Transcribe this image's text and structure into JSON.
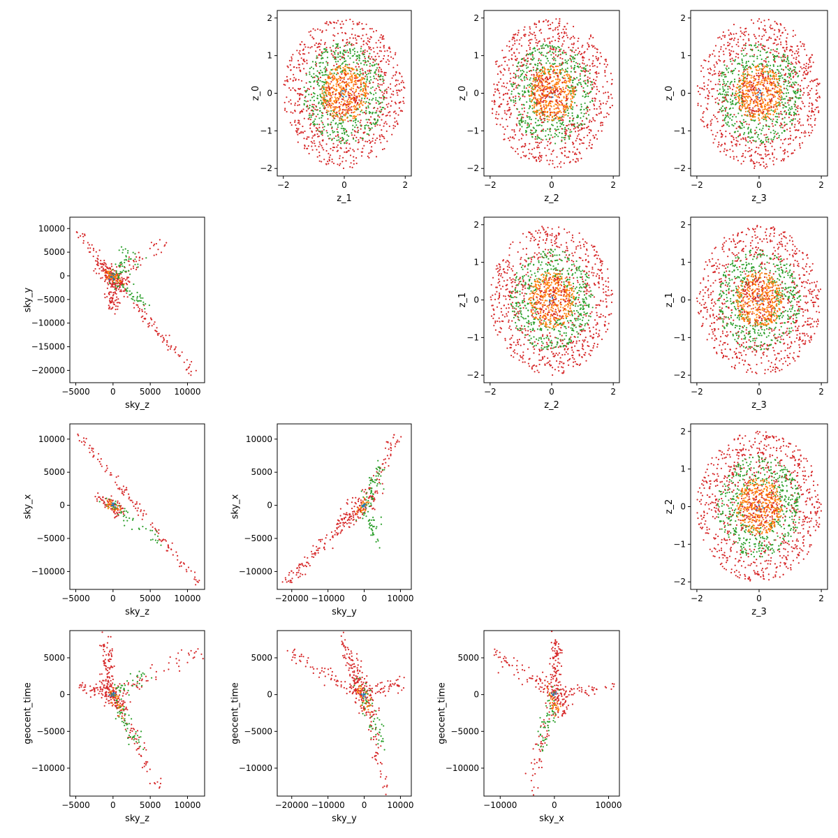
{
  "figure": {
    "type": "pairwise scatter matrix",
    "series_colors": [
      "#1f77b4",
      "#ff7f0e",
      "#2ca02c",
      "#d62728"
    ]
  },
  "chart_data": [
    {
      "id": "z1-z0",
      "type": "scatter",
      "pattern": "rings",
      "xlabel": "z_1",
      "ylabel": "z_0",
      "xlim": [
        -2.2,
        2.2
      ],
      "ylim": [
        -2.2,
        2.2
      ],
      "xticks": [
        -2,
        0,
        2
      ],
      "yticks": [
        -2,
        -1,
        0,
        1,
        2
      ],
      "xtick_labels": [
        "−2",
        "0",
        "2"
      ],
      "ytick_labels": [
        "−2",
        "−1",
        "0",
        "1",
        "2"
      ],
      "seed": 11
    },
    {
      "id": "z2-z0",
      "type": "scatter",
      "pattern": "rings",
      "xlabel": "z_2",
      "ylabel": "z_0",
      "xlim": [
        -2.2,
        2.2
      ],
      "ylim": [
        -2.2,
        2.2
      ],
      "xticks": [
        -2,
        0,
        2
      ],
      "yticks": [
        -2,
        -1,
        0,
        1,
        2
      ],
      "xtick_labels": [
        "−2",
        "0",
        "2"
      ],
      "ytick_labels": [
        "−2",
        "−1",
        "0",
        "1",
        "2"
      ],
      "seed": 12
    },
    {
      "id": "z3-z0",
      "type": "scatter",
      "pattern": "rings",
      "xlabel": "z_3",
      "ylabel": "z_0",
      "xlim": [
        -2.2,
        2.2
      ],
      "ylim": [
        -2.2,
        2.2
      ],
      "xticks": [
        -2,
        0,
        2
      ],
      "yticks": [
        -2,
        -1,
        0,
        1,
        2
      ],
      "xtick_labels": [
        "−2",
        "0",
        "2"
      ],
      "ytick_labels": [
        "−2",
        "−1",
        "0",
        "1",
        "2"
      ],
      "seed": 13
    },
    {
      "id": "skyz-skyy",
      "type": "scatter",
      "pattern": "arms",
      "xlabel": "sky_z",
      "ylabel": "sky_y",
      "xlim": [
        -5800,
        12300
      ],
      "ylim": [
        -22600,
        12400
      ],
      "xticks": [
        -5000,
        0,
        5000,
        10000
      ],
      "yticks": [
        -20000,
        -15000,
        -10000,
        -5000,
        0,
        5000,
        10000
      ],
      "xtick_labels": [
        "−5000",
        "0",
        "5000",
        "10000"
      ],
      "ytick_labels": [
        "−20000",
        "−15000",
        "−10000",
        "−5000",
        "0",
        "5000",
        "10000"
      ],
      "seed": 21,
      "arms": [
        {
          "series": 3,
          "n": 90,
          "from": [
            -300,
            300
          ],
          "to": [
            11500,
            -22000
          ],
          "spread": [
            350,
            600
          ]
        },
        {
          "series": 3,
          "n": 45,
          "from": [
            -400,
            300
          ],
          "to": [
            -4700,
            9800
          ],
          "spread": [
            300,
            600
          ]
        },
        {
          "series": 3,
          "n": 40,
          "from": [
            500,
            400
          ],
          "to": [
            6800,
            7200
          ],
          "spread": [
            700,
            900
          ]
        },
        {
          "series": 3,
          "n": 110,
          "from": [
            0,
            1200
          ],
          "to": [
            0,
            -7000
          ],
          "spread": [
            450,
            900
          ]
        },
        {
          "series": 3,
          "n": 120,
          "from": [
            -1500,
            1500
          ],
          "to": [
            1500,
            -1800
          ],
          "spread": [
            700,
            800
          ]
        },
        {
          "series": 2,
          "n": 60,
          "from": [
            0,
            -1000
          ],
          "to": [
            2500,
            5000
          ],
          "spread": [
            700,
            900
          ]
        },
        {
          "series": 2,
          "n": 40,
          "from": [
            600,
            -1500
          ],
          "to": [
            4500,
            -6000
          ],
          "spread": [
            400,
            500
          ]
        },
        {
          "series": 1,
          "n": 40,
          "from": [
            -800,
            800
          ],
          "to": [
            900,
            -1200
          ],
          "spread": [
            350,
            400
          ]
        }
      ]
    },
    {
      "id": "z2-z1",
      "type": "scatter",
      "pattern": "rings",
      "xlabel": "z_2",
      "ylabel": "z_1",
      "xlim": [
        -2.2,
        2.2
      ],
      "ylim": [
        -2.2,
        2.2
      ],
      "xticks": [
        -2,
        0,
        2
      ],
      "yticks": [
        -2,
        -1,
        0,
        1,
        2
      ],
      "xtick_labels": [
        "−2",
        "0",
        "2"
      ],
      "ytick_labels": [
        "−2",
        "−1",
        "0",
        "1",
        "2"
      ],
      "seed": 22
    },
    {
      "id": "z3-z1",
      "type": "scatter",
      "pattern": "rings",
      "xlabel": "z_3",
      "ylabel": "z_1",
      "xlim": [
        -2.2,
        2.2
      ],
      "ylim": [
        -2.2,
        2.2
      ],
      "xticks": [
        -2,
        0,
        2
      ],
      "yticks": [
        -2,
        -1,
        0,
        1,
        2
      ],
      "xtick_labels": [
        "−2",
        "0",
        "2"
      ],
      "ytick_labels": [
        "−2",
        "−1",
        "0",
        "1",
        "2"
      ],
      "seed": 23
    },
    {
      "id": "skyz-skyx",
      "type": "scatter",
      "pattern": "arms",
      "xlabel": "sky_z",
      "ylabel": "sky_x",
      "xlim": [
        -5800,
        12300
      ],
      "ylim": [
        -12700,
        12300
      ],
      "xticks": [
        -5000,
        0,
        5000,
        10000
      ],
      "yticks": [
        -10000,
        -5000,
        0,
        5000,
        10000
      ],
      "xtick_labels": [
        "−5000",
        "0",
        "5000",
        "10000"
      ],
      "ytick_labels": [
        "−10000",
        "−5000",
        "0",
        "5000",
        "10000"
      ],
      "seed": 31,
      "arms": [
        {
          "series": 3,
          "n": 120,
          "from": [
            -4700,
            10800
          ],
          "to": [
            11500,
            -11800
          ],
          "spread": [
            250,
            350
          ]
        },
        {
          "series": 3,
          "n": 80,
          "from": [
            -1800,
            1500
          ],
          "to": [
            1200,
            -1200
          ],
          "spread": [
            500,
            500
          ]
        },
        {
          "series": 2,
          "n": 50,
          "from": [
            -1000,
            700
          ],
          "to": [
            6000,
            -5500
          ],
          "spread": [
            500,
            500
          ]
        },
        {
          "series": 1,
          "n": 25,
          "from": [
            -800,
            600
          ],
          "to": [
            800,
            -800
          ],
          "spread": [
            300,
            300
          ]
        }
      ]
    },
    {
      "id": "skyy-skyx",
      "type": "scatter",
      "pattern": "arms",
      "xlabel": "sky_y",
      "ylabel": "sky_x",
      "xlim": [
        -24000,
        13000
      ],
      "ylim": [
        -12700,
        12300
      ],
      "xticks": [
        -20000,
        -10000,
        0,
        10000
      ],
      "yticks": [
        -10000,
        -5000,
        0,
        5000,
        10000
      ],
      "xtick_labels": [
        "−20000",
        "−10000",
        "0",
        "10000"
      ],
      "ytick_labels": [
        "−10000",
        "−5000",
        "0",
        "5000",
        "10000"
      ],
      "seed": 32,
      "arms": [
        {
          "series": 3,
          "n": 110,
          "from": [
            -22000,
            -11800
          ],
          "to": [
            0,
            0
          ],
          "spread": [
            800,
            500
          ]
        },
        {
          "series": 3,
          "n": 60,
          "from": [
            0,
            0
          ],
          "to": [
            9000,
            10500
          ],
          "spread": [
            900,
            700
          ]
        },
        {
          "series": 3,
          "n": 100,
          "from": [
            -6000,
            -3000
          ],
          "to": [
            1500,
            1500
          ],
          "spread": [
            1500,
            800
          ]
        },
        {
          "series": 2,
          "n": 60,
          "from": [
            0,
            0
          ],
          "to": [
            5000,
            6000
          ],
          "spread": [
            900,
            900
          ]
        },
        {
          "series": 2,
          "n": 40,
          "from": [
            0,
            -1500
          ],
          "to": [
            4000,
            -5000
          ],
          "spread": [
            700,
            800
          ]
        },
        {
          "series": 1,
          "n": 25,
          "from": [
            -1500,
            -800
          ],
          "to": [
            1000,
            600
          ],
          "spread": [
            600,
            400
          ]
        }
      ]
    },
    {
      "id": "z3-z2",
      "type": "scatter",
      "pattern": "rings",
      "xlabel": "z_3",
      "ylabel": "z_2",
      "xlim": [
        -2.2,
        2.2
      ],
      "ylim": [
        -2.2,
        2.2
      ],
      "xticks": [
        -2,
        0,
        2
      ],
      "yticks": [
        -2,
        -1,
        0,
        1,
        2
      ],
      "xtick_labels": [
        "−2",
        "0",
        "2"
      ],
      "ytick_labels": [
        "−2",
        "−1",
        "0",
        "1",
        "2"
      ],
      "seed": 33
    },
    {
      "id": "skyz-time",
      "type": "scatter",
      "pattern": "arms",
      "xlabel": "sky_z",
      "ylabel": "geocent_time",
      "xlim": [
        -5800,
        12300
      ],
      "ylim": [
        -13800,
        8700
      ],
      "xticks": [
        -5000,
        0,
        5000,
        10000
      ],
      "yticks": [
        -10000,
        -5000,
        0,
        5000
      ],
      "xtick_labels": [
        "−5000",
        "0",
        "5000",
        "10000"
      ],
      "ytick_labels": [
        "−10000",
        "−5000",
        "0",
        "5000"
      ],
      "seed": 41,
      "arms": [
        {
          "series": 3,
          "n": 90,
          "from": [
            -500,
            0
          ],
          "to": [
            -1000,
            7500
          ],
          "spread": [
            450,
            500
          ]
        },
        {
          "series": 3,
          "n": 60,
          "from": [
            0,
            0
          ],
          "to": [
            6200,
            -13000
          ],
          "spread": [
            450,
            600
          ]
        },
        {
          "series": 3,
          "n": 50,
          "from": [
            -4800,
            1300
          ],
          "to": [
            0,
            0
          ],
          "spread": [
            300,
            400
          ]
        },
        {
          "series": 3,
          "n": 55,
          "from": [
            0,
            0
          ],
          "to": [
            11500,
            5800
          ],
          "spread": [
            500,
            600
          ]
        },
        {
          "series": 3,
          "n": 100,
          "from": [
            -1500,
            1500
          ],
          "to": [
            1500,
            -2000
          ],
          "spread": [
            600,
            700
          ]
        },
        {
          "series": 2,
          "n": 55,
          "from": [
            0,
            0
          ],
          "to": [
            3500,
            -7000
          ],
          "spread": [
            500,
            700
          ]
        },
        {
          "series": 2,
          "n": 40,
          "from": [
            -500,
            0
          ],
          "to": [
            4500,
            2500
          ],
          "spread": [
            500,
            500
          ]
        },
        {
          "series": 1,
          "n": 30,
          "from": [
            -200,
            500
          ],
          "to": [
            1200,
            -2500
          ],
          "spread": [
            300,
            400
          ]
        }
      ]
    },
    {
      "id": "skyy-time",
      "type": "scatter",
      "pattern": "arms",
      "xlabel": "sky_y",
      "ylabel": "geocent_time",
      "xlim": [
        -24000,
        13000
      ],
      "ylim": [
        -13800,
        8700
      ],
      "xticks": [
        -20000,
        -10000,
        0,
        10000
      ],
      "yticks": [
        -10000,
        -5000,
        0,
        5000
      ],
      "xtick_labels": [
        "−20000",
        "−10000",
        "0",
        "10000"
      ],
      "ytick_labels": [
        "−10000",
        "−5000",
        "0",
        "5000"
      ],
      "seed": 42,
      "arms": [
        {
          "series": 3,
          "n": 70,
          "from": [
            -21000,
            5800
          ],
          "to": [
            0,
            0
          ],
          "spread": [
            700,
            500
          ]
        },
        {
          "series": 3,
          "n": 100,
          "from": [
            -6000,
            7500
          ],
          "to": [
            0,
            0
          ],
          "spread": [
            1000,
            700
          ]
        },
        {
          "series": 3,
          "n": 55,
          "from": [
            0,
            0
          ],
          "to": [
            6000,
            -13000
          ],
          "spread": [
            900,
            700
          ]
        },
        {
          "series": 3,
          "n": 50,
          "from": [
            0,
            0
          ],
          "to": [
            10500,
            1500
          ],
          "spread": [
            700,
            500
          ]
        },
        {
          "series": 3,
          "n": 80,
          "from": [
            -3000,
            2000
          ],
          "to": [
            2000,
            -2500
          ],
          "spread": [
            1300,
            900
          ]
        },
        {
          "series": 2,
          "n": 55,
          "from": [
            -1000,
            1000
          ],
          "to": [
            5000,
            -7000
          ],
          "spread": [
            900,
            800
          ]
        },
        {
          "series": 1,
          "n": 30,
          "from": [
            -1500,
            1000
          ],
          "to": [
            1500,
            -2500
          ],
          "spread": [
            700,
            500
          ]
        }
      ]
    },
    {
      "id": "skyx-time",
      "type": "scatter",
      "pattern": "arms",
      "xlabel": "sky_x",
      "ylabel": "geocent_time",
      "xlim": [
        -13000,
        12000
      ],
      "ylim": [
        -13800,
        8700
      ],
      "xticks": [
        -10000,
        0,
        10000
      ],
      "yticks": [
        -10000,
        -5000,
        0,
        5000
      ],
      "xtick_labels": [
        "−10000",
        "0",
        "10000"
      ],
      "ytick_labels": [
        "−10000",
        "−5000",
        "0",
        "5000"
      ],
      "seed": 43,
      "arms": [
        {
          "series": 3,
          "n": 90,
          "from": [
            0,
            0
          ],
          "to": [
            300,
            7500
          ],
          "spread": [
            500,
            500
          ]
        },
        {
          "series": 3,
          "n": 60,
          "from": [
            -11500,
            5800
          ],
          "to": [
            0,
            0
          ],
          "spread": [
            600,
            500
          ]
        },
        {
          "series": 3,
          "n": 50,
          "from": [
            0,
            0
          ],
          "to": [
            11000,
            1200
          ],
          "spread": [
            500,
            400
          ]
        },
        {
          "series": 3,
          "n": 55,
          "from": [
            0,
            0
          ],
          "to": [
            -4500,
            -13000
          ],
          "spread": [
            600,
            600
          ]
        },
        {
          "series": 3,
          "n": 80,
          "from": [
            -2000,
            2000
          ],
          "to": [
            2000,
            -2500
          ],
          "spread": [
            800,
            800
          ]
        },
        {
          "series": 2,
          "n": 55,
          "from": [
            0,
            0
          ],
          "to": [
            -3000,
            -8000
          ],
          "spread": [
            600,
            700
          ]
        },
        {
          "series": 1,
          "n": 30,
          "from": [
            -1000,
            500
          ],
          "to": [
            800,
            -2500
          ],
          "spread": [
            400,
            400
          ]
        }
      ]
    }
  ]
}
